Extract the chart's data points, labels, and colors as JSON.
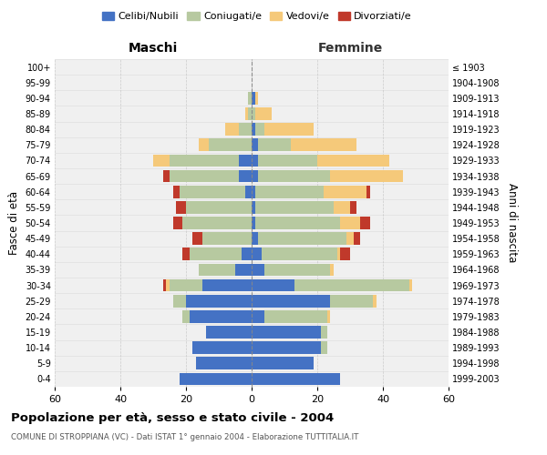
{
  "age_groups": [
    "0-4",
    "5-9",
    "10-14",
    "15-19",
    "20-24",
    "25-29",
    "30-34",
    "35-39",
    "40-44",
    "45-49",
    "50-54",
    "55-59",
    "60-64",
    "65-69",
    "70-74",
    "75-79",
    "80-84",
    "85-89",
    "90-94",
    "95-99",
    "100+"
  ],
  "birth_years": [
    "1999-2003",
    "1994-1998",
    "1989-1993",
    "1984-1988",
    "1979-1983",
    "1974-1978",
    "1969-1973",
    "1964-1968",
    "1959-1963",
    "1954-1958",
    "1949-1953",
    "1944-1948",
    "1939-1943",
    "1934-1938",
    "1929-1933",
    "1924-1928",
    "1919-1923",
    "1914-1918",
    "1909-1913",
    "1904-1908",
    "≤ 1903"
  ],
  "male": {
    "celibi": [
      22,
      17,
      18,
      14,
      19,
      20,
      15,
      5,
      3,
      0,
      0,
      0,
      2,
      4,
      4,
      0,
      0,
      0,
      0,
      0,
      0
    ],
    "coniugati": [
      0,
      0,
      0,
      0,
      2,
      4,
      10,
      11,
      16,
      15,
      21,
      20,
      20,
      21,
      21,
      13,
      4,
      1,
      1,
      0,
      0
    ],
    "vedovi": [
      0,
      0,
      0,
      0,
      0,
      0,
      1,
      0,
      0,
      0,
      0,
      0,
      0,
      0,
      5,
      3,
      4,
      1,
      0,
      0,
      0
    ],
    "divorziati": [
      0,
      0,
      0,
      0,
      0,
      0,
      1,
      0,
      2,
      3,
      3,
      3,
      2,
      2,
      0,
      0,
      0,
      0,
      0,
      0,
      0
    ]
  },
  "female": {
    "nubili": [
      27,
      19,
      21,
      21,
      4,
      24,
      13,
      4,
      3,
      2,
      1,
      1,
      1,
      2,
      2,
      2,
      1,
      0,
      1,
      0,
      0
    ],
    "coniugate": [
      0,
      0,
      2,
      2,
      19,
      13,
      35,
      20,
      23,
      27,
      26,
      24,
      21,
      22,
      18,
      10,
      3,
      1,
      0,
      0,
      0
    ],
    "vedove": [
      0,
      0,
      0,
      0,
      1,
      1,
      1,
      1,
      1,
      2,
      6,
      5,
      13,
      22,
      22,
      20,
      15,
      5,
      1,
      0,
      0
    ],
    "divorziate": [
      0,
      0,
      0,
      0,
      0,
      0,
      0,
      0,
      3,
      2,
      3,
      2,
      1,
      0,
      0,
      0,
      0,
      0,
      0,
      0,
      0
    ]
  },
  "colors": {
    "celibi": "#4472c4",
    "coniugati": "#b7c9a0",
    "vedovi": "#f5c97a",
    "divorziati": "#c0392b"
  },
  "title": "Popolazione per età, sesso e stato civile - 2004",
  "subtitle": "COMUNE DI STROPPIANA (VC) - Dati ISTAT 1° gennaio 2004 - Elaborazione TUTTITALIA.IT",
  "xlabel_left": "Maschi",
  "xlabel_right": "Femmine",
  "ylabel_left": "Fasce di età",
  "ylabel_right": "Anni di nascita",
  "xlim": 60,
  "legend_labels": [
    "Celibi/Nubili",
    "Coniugati/e",
    "Vedovi/e",
    "Divorziati/e"
  ],
  "bg_color": "#f0f0f0",
  "header_color_left": "#000000",
  "header_color_right": "#000000"
}
